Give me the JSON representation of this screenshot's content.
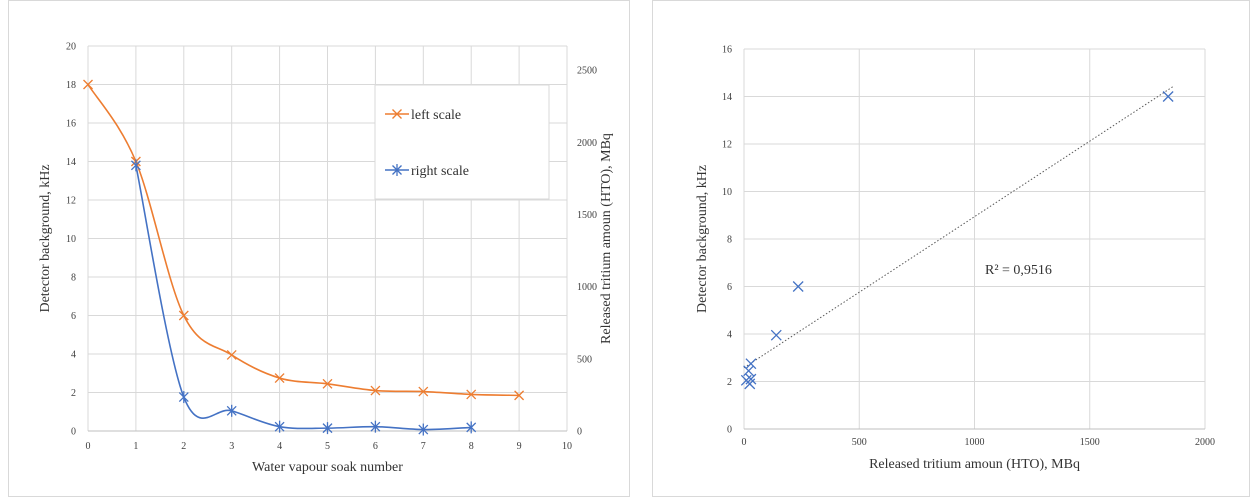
{
  "chart_data": [
    {
      "type": "line",
      "xlabel": "Water vapour soak number",
      "ylabel": "Detector background, kHz",
      "y2label": "Released tritium amoun (HTO),  MBq",
      "xlim": [
        0,
        10
      ],
      "ylim": [
        0,
        20
      ],
      "y2lim": [
        0,
        2666.67
      ],
      "x_ticks": [
        "0",
        "1",
        "2",
        "3",
        "4",
        "5",
        "6",
        "7",
        "8",
        "9",
        "10"
      ],
      "y_ticks": [
        "0",
        "2",
        "4",
        "6",
        "8",
        "10",
        "12",
        "14",
        "16",
        "18",
        "20"
      ],
      "y2_ticks": [
        "0",
        "500",
        "1000",
        "1500",
        "2000",
        "2500"
      ],
      "grid": true,
      "legend_position": "top-right",
      "series": [
        {
          "name": "left scale",
          "axis": "left",
          "color": "#ED7D31",
          "marker": "x",
          "x": [
            0,
            1,
            2,
            3,
            4,
            5,
            6,
            7,
            8,
            9
          ],
          "values": [
            18,
            14,
            6,
            3.95,
            2.75,
            2.45,
            2.1,
            2.05,
            1.9,
            1.85
          ]
        },
        {
          "name": "right scale",
          "axis": "right",
          "color": "#4472C4",
          "marker": "star",
          "x": [
            1,
            2,
            3,
            4,
            5,
            6,
            7,
            8
          ],
          "values": [
            1840,
            235,
            140,
            30,
            20,
            30,
            10,
            25
          ]
        }
      ]
    },
    {
      "type": "scatter",
      "xlabel": "Released tritium amoun (HTO),  MBq",
      "ylabel": "Detector background, kHz",
      "xlim": [
        0,
        2000
      ],
      "ylim": [
        0,
        16
      ],
      "x_ticks": [
        "0",
        "500",
        "1000",
        "1500",
        "2000"
      ],
      "y_ticks": [
        "0",
        "2",
        "4",
        "6",
        "8",
        "10",
        "12",
        "14",
        "16"
      ],
      "grid": true,
      "color": "#4472C4",
      "marker": "x",
      "points": [
        {
          "x": 1840,
          "y": 14
        },
        {
          "x": 235,
          "y": 6
        },
        {
          "x": 140,
          "y": 3.95
        },
        {
          "x": 30,
          "y": 2.75
        },
        {
          "x": 20,
          "y": 2.45
        },
        {
          "x": 30,
          "y": 2.1
        },
        {
          "x": 10,
          "y": 2.05
        },
        {
          "x": 25,
          "y": 1.9
        }
      ],
      "trendline": {
        "style": "dotted",
        "color": "#595959",
        "slope": 0.00636,
        "intercept": 2.58
      },
      "annotation": "R² = 0,9516"
    }
  ]
}
